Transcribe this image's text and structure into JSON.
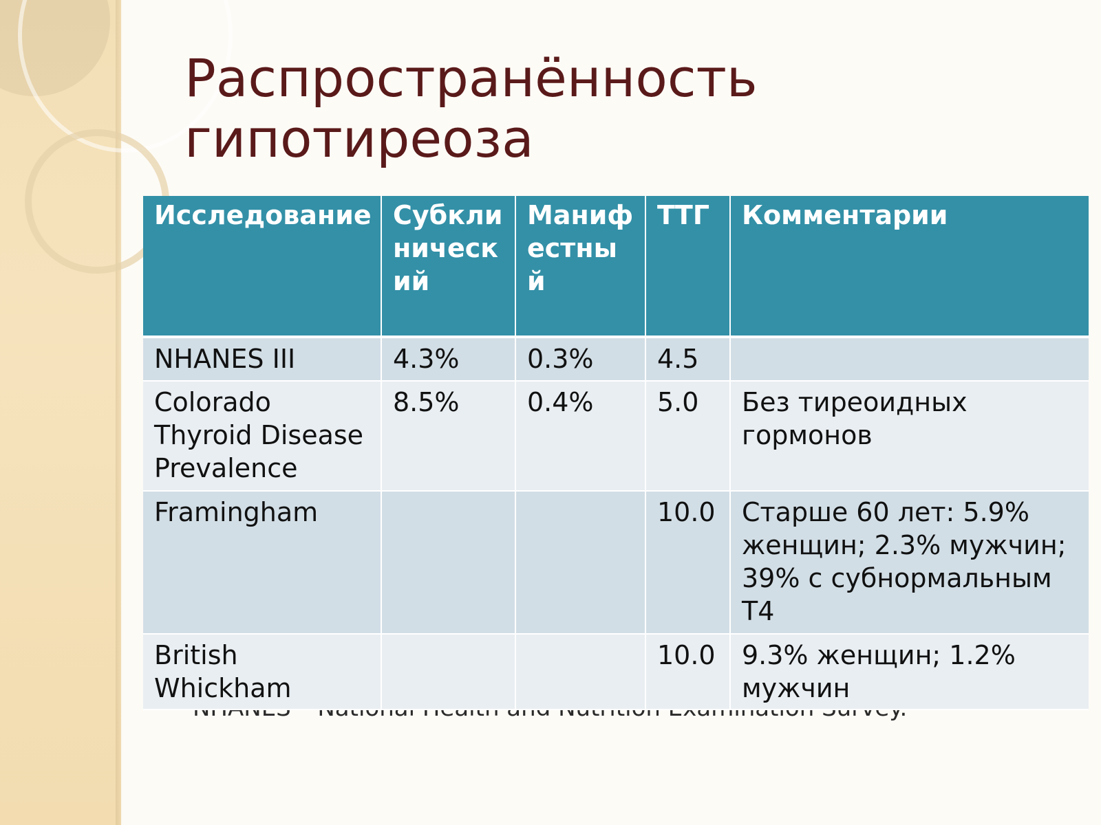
{
  "slide": {
    "title_line1": "Распространённость",
    "title_line2": "гипотиреоза",
    "footnote": "NHANES – National Health and Nutrition Examination Survey."
  },
  "colors": {
    "header_bg": "#3390a7",
    "row_dark": "#d2dee6",
    "row_light": "#e9eef2",
    "title": "#5a1a1a",
    "sidebar": "#f3dfb6"
  },
  "table": {
    "headers": [
      "Исследование",
      "Субклинический",
      "Манифестный",
      "ТТГ",
      "Комментарии"
    ],
    "rows": [
      [
        "NHANES III",
        "4.3%",
        "0.3%",
        "4.5",
        ""
      ],
      [
        "Colorado Thyroid Disease Prevalence",
        "8.5%",
        "0.4%",
        "5.0",
        "Без тиреоидных гормонов"
      ],
      [
        "Framingham",
        "",
        "",
        "10.0",
        "Старше 60 лет: 5.9% женщин; 2.3% мужчин; 39% с субнормальным T4"
      ],
      [
        "British Whickham",
        "",
        "",
        "10.0",
        "9.3% женщин; 1.2% мужчин"
      ]
    ]
  }
}
